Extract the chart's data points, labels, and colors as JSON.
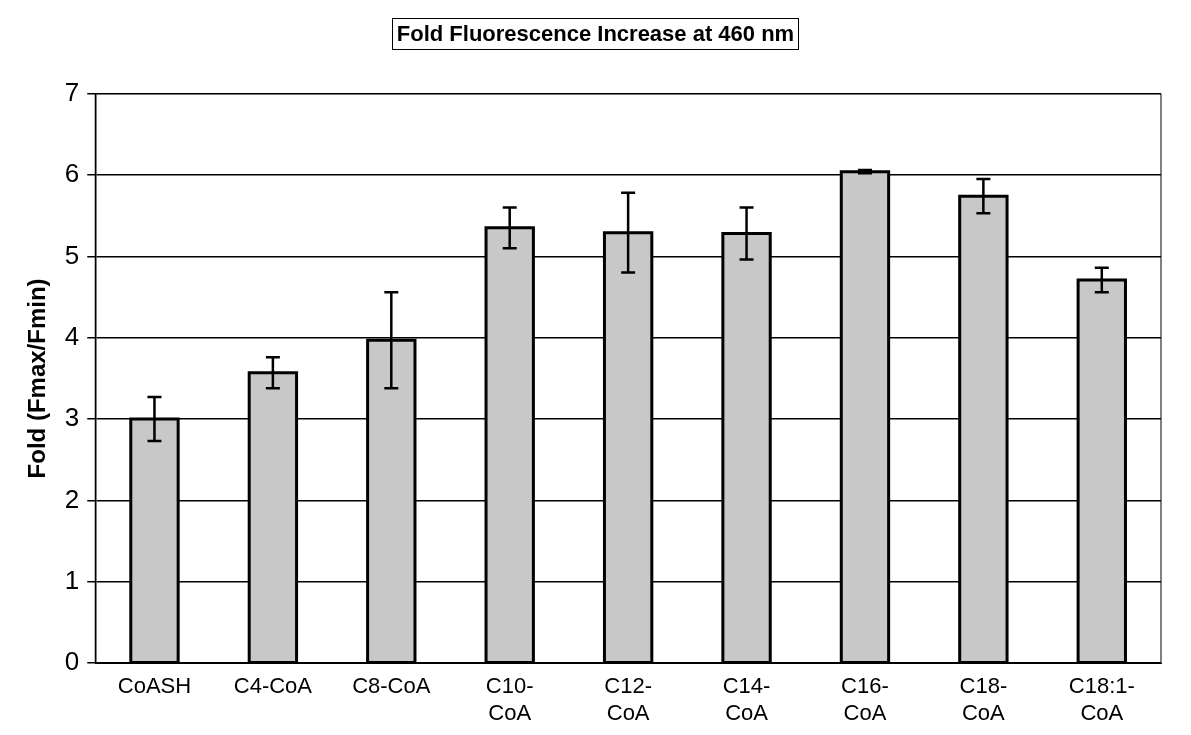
{
  "chart_data": {
    "type": "bar",
    "title": "Fold Fluorescence Increase at 460 nm",
    "ylabel": "Fold (Fmax/Fmin)",
    "categories": [
      "CoASH",
      "C4-CoA",
      "C8-CoA",
      "C10-CoA",
      "C12-CoA",
      "C14-CoA",
      "C16-CoA",
      "C18-CoA",
      "C18:1-CoA"
    ],
    "values": [
      3.0,
      3.57,
      3.97,
      5.35,
      5.29,
      5.28,
      6.04,
      5.74,
      4.71
    ],
    "errors": [
      0.27,
      0.19,
      0.59,
      0.25,
      0.49,
      0.32,
      0.02,
      0.21,
      0.15
    ],
    "color": "#c8c8c8",
    "ylim": [
      0,
      7
    ],
    "yticks": [
      0,
      1,
      2,
      3,
      4,
      5,
      6,
      7
    ],
    "grid": "y",
    "legend": false
  }
}
